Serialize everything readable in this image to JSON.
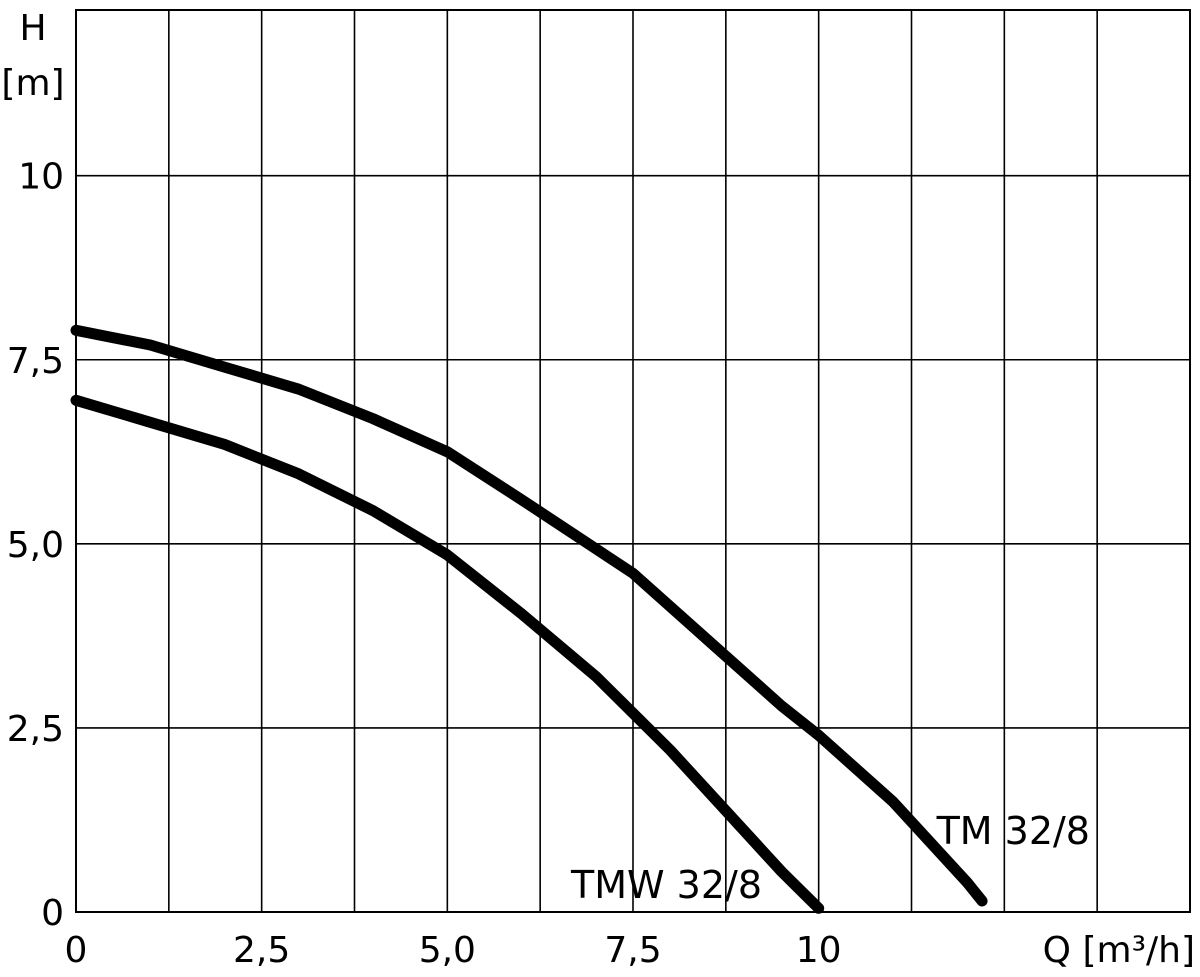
{
  "chart_data": {
    "type": "line",
    "title": "",
    "ylabel_line1": "H",
    "ylabel_line2": "[m]",
    "xlabel": "Q [m³/h]",
    "xlim": [
      0,
      15
    ],
    "ylim": [
      0,
      12.25
    ],
    "x_ticks": [
      {
        "value": 0,
        "label": "0"
      },
      {
        "value": 2.5,
        "label": "2,5"
      },
      {
        "value": 5.0,
        "label": "5,0"
      },
      {
        "value": 7.5,
        "label": "7,5"
      },
      {
        "value": 10,
        "label": "10"
      }
    ],
    "y_ticks": [
      {
        "value": 0,
        "label": "0"
      },
      {
        "value": 2.5,
        "label": "2,5"
      },
      {
        "value": 5.0,
        "label": "5,0"
      },
      {
        "value": 7.5,
        "label": "7,5"
      },
      {
        "value": 10,
        "label": "10"
      }
    ],
    "grid": true,
    "x_grid_step": 1.25,
    "y_grid_step": 2.5,
    "series": [
      {
        "name": "TM 32/8",
        "x": [
          0,
          1.0,
          2.0,
          3.0,
          4.0,
          5.0,
          6.0,
          7.5,
          8.5,
          9.5,
          10.0,
          11.0,
          12.0,
          12.2
        ],
        "y": [
          7.9,
          7.7,
          7.4,
          7.1,
          6.7,
          6.25,
          5.6,
          4.6,
          3.7,
          2.8,
          2.4,
          1.5,
          0.4,
          0.15
        ]
      },
      {
        "name": "TMW 32/8",
        "x": [
          0,
          1.0,
          2.0,
          3.0,
          4.0,
          5.0,
          6.0,
          7.0,
          8.0,
          9.0,
          9.5,
          10.0
        ],
        "y": [
          6.95,
          6.65,
          6.35,
          5.95,
          5.45,
          4.85,
          4.05,
          3.2,
          2.2,
          1.1,
          0.55,
          0.05
        ]
      }
    ]
  }
}
